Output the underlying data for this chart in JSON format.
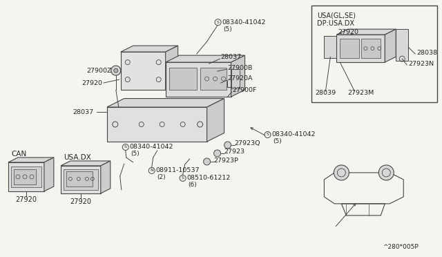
{
  "bg_color": "#f5f5f0",
  "line_color": "#444444",
  "text_color": "#222222",
  "watermark": "^280*005P",
  "labels": {
    "08340_41042_top": "08340-41042",
    "qty5": "(5)",
    "qty6": "(6)",
    "qty2": "(2)",
    "27900Z": "27900Z",
    "28037": "28037",
    "27900B": "27900B",
    "27920": "27920",
    "27920A": "27920A",
    "27900F": "27900F",
    "279230": "27923Q",
    "27923": "27923",
    "27923P": "27923P",
    "08510_61212": "08510-61212",
    "08911_10537": "08911-10537",
    "CAN": "CAN",
    "USA_DX_label": "USA.DX",
    "inset_title1": "USA(GL,SE)",
    "inset_title2": "DP:USA.DX",
    "inset_27920": "27920",
    "inset_28038": "28038",
    "inset_27923N": "27923N",
    "inset_28039": "28039",
    "inset_27923M": "27923M"
  }
}
